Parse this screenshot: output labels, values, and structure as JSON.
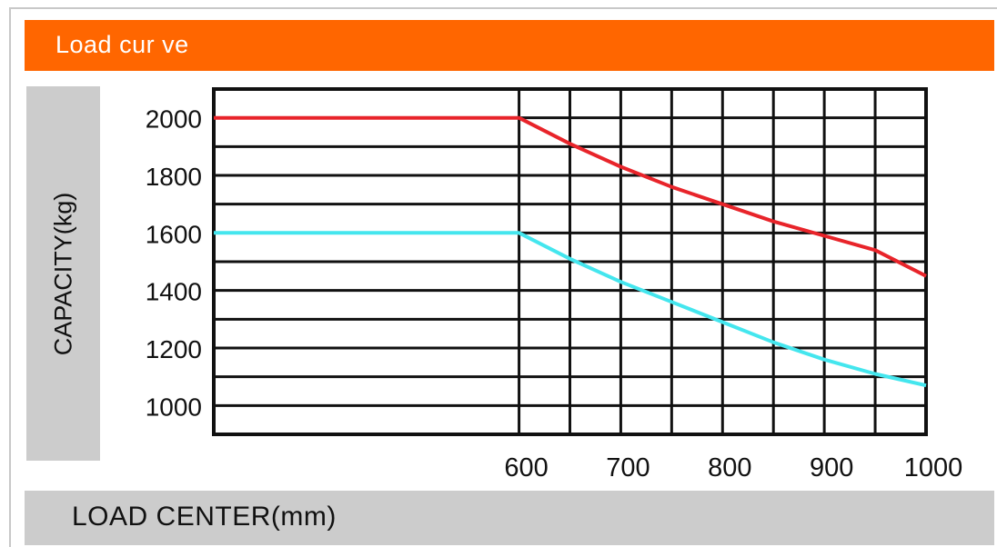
{
  "header": {
    "title": "Load  cur ve"
  },
  "colors": {
    "header_bg": "#ff6600",
    "label_bg": "#cccccc",
    "series1": "#e8242a",
    "series2": "#44e6ee"
  },
  "chart_data": {
    "type": "line",
    "title": "Load  cur ve",
    "xlabel": "LOAD CENTER(mm)",
    "ylabel": "CAPACITY(kg)",
    "xlim": [
      300,
      1000
    ],
    "ylim": [
      900,
      2100
    ],
    "x_ticks": [
      600,
      700,
      800,
      900,
      1000
    ],
    "y_ticks": [
      1000,
      1200,
      1400,
      1600,
      1800,
      2000
    ],
    "grid": true,
    "series": [
      {
        "color": "#e8242a",
        "x": [
          300,
          600,
          650,
          700,
          750,
          800,
          850,
          900,
          950,
          1000
        ],
        "y": [
          2000,
          2000,
          1910,
          1830,
          1760,
          1700,
          1640,
          1590,
          1540,
          1450
        ]
      },
      {
        "color": "#44e6ee",
        "x": [
          300,
          600,
          650,
          700,
          750,
          800,
          850,
          900,
          950,
          1000
        ],
        "y": [
          1600,
          1600,
          1510,
          1430,
          1360,
          1290,
          1220,
          1160,
          1110,
          1070
        ]
      }
    ]
  }
}
